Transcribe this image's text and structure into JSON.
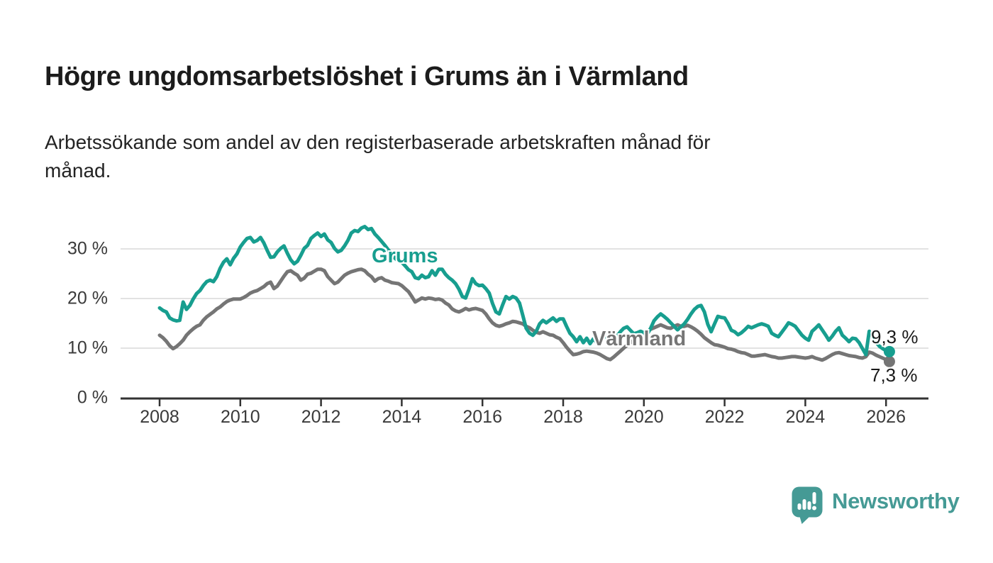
{
  "header": {
    "title": "Högre ungdomsarbetslöshet i Grums än i Värmland",
    "subtitle": "Arbetssökande som andel av den registerbaserade arbetskraften månad för\nmånad."
  },
  "chart_data": {
    "type": "line",
    "title": "Högre ungdomsarbetslöshet i Grums än i Värmland",
    "subtitle": "Arbetssökande som andel av den registerbaserade arbetskraften månad för månad.",
    "x_unit": "month",
    "x_start": "2008-01",
    "x_end": "2026-02",
    "xlim": [
      2007.05,
      2027.05
    ],
    "ylim": [
      0,
      36
    ],
    "grid": "horizontal",
    "legend": "inline-labels",
    "x_axis_ticks": [
      2008,
      2010,
      2012,
      2014,
      2016,
      2018,
      2020,
      2022,
      2024,
      2026
    ],
    "y_axis_ticks": [
      {
        "value": 0,
        "label": "0 %"
      },
      {
        "value": 10,
        "label": "10 %"
      },
      {
        "value": 20,
        "label": "20 %"
      },
      {
        "value": 30,
        "label": "30 %"
      }
    ],
    "colors": {
      "grid": "#d9d9d9",
      "axis": "#333333"
    },
    "series": [
      {
        "name": "Grums",
        "color": "#179e8f",
        "end_label": "9,3 %",
        "end_value": 9.3,
        "values": [
          18.1,
          17.6,
          17.3,
          16.1,
          15.7,
          15.5,
          15.6,
          19.3,
          17.8,
          18.6,
          19.9,
          21.0,
          21.6,
          22.6,
          23.4,
          23.7,
          23.4,
          24.4,
          26.1,
          27.3,
          28.0,
          26.8,
          28.1,
          29.0,
          30.4,
          31.3,
          32.1,
          32.3,
          31.4,
          31.7,
          32.3,
          31.2,
          29.7,
          28.3,
          28.4,
          29.4,
          30.1,
          30.6,
          29.1,
          27.8,
          27.0,
          27.5,
          28.7,
          30.1,
          30.7,
          32.1,
          32.7,
          33.2,
          32.5,
          33.0,
          31.8,
          31.3,
          30.1,
          29.4,
          29.7,
          30.6,
          31.7,
          33.2,
          33.7,
          33.5,
          34.2,
          34.5,
          33.9,
          34.1,
          33.0,
          32.3,
          31.5,
          30.7,
          29.8,
          29.0,
          28.1,
          27.5,
          27.3,
          26.6,
          25.8,
          25.4,
          24.2,
          24.0,
          24.7,
          24.2,
          24.4,
          25.6,
          24.7,
          25.9,
          25.9,
          24.9,
          24.2,
          23.7,
          23.0,
          21.9,
          20.4,
          20.1,
          21.9,
          24.0,
          23.0,
          22.6,
          22.7,
          22.0,
          21.1,
          19.0,
          17.3,
          16.9,
          18.7,
          20.4,
          19.9,
          20.4,
          20.1,
          19.1,
          16.6,
          14.0,
          13.0,
          12.6,
          13.4,
          14.9,
          15.6,
          15.1,
          15.6,
          16.1,
          15.4,
          15.9,
          15.9,
          14.4,
          13.0,
          12.3,
          11.3,
          12.3,
          11.1,
          12.0,
          10.9,
          11.9,
          11.1,
          11.6,
          12.1,
          12.6,
          12.2,
          11.7,
          12.4,
          13.3,
          14.0,
          14.3,
          13.6,
          12.9,
          13.1,
          13.4,
          13.1,
          12.8,
          14.0,
          15.5,
          16.3,
          16.9,
          16.4,
          15.8,
          15.1,
          14.4,
          13.7,
          14.3,
          14.9,
          15.8,
          16.9,
          17.8,
          18.4,
          18.6,
          17.3,
          14.8,
          13.3,
          14.9,
          16.4,
          16.2,
          16.1,
          15.0,
          13.6,
          13.3,
          12.7,
          13.1,
          13.7,
          14.4,
          14.1,
          14.4,
          14.7,
          14.9,
          14.7,
          14.4,
          13.0,
          12.6,
          12.3,
          13.2,
          14.1,
          15.1,
          14.8,
          14.4,
          13.5,
          12.6,
          12.0,
          11.6,
          13.4,
          14.0,
          14.7,
          13.7,
          12.7,
          11.6,
          12.4,
          13.4,
          14.1,
          12.6,
          12.0,
          11.3,
          12.0,
          11.9,
          11.1,
          9.9,
          8.7,
          13.4,
          12.3,
          11.2,
          10.4,
          9.9,
          9.5,
          9.3
        ]
      },
      {
        "name": "Värmland",
        "color": "#757575",
        "end_label": "7,3 %",
        "end_value": 7.3,
        "values": [
          12.6,
          12.1,
          11.4,
          10.5,
          9.9,
          10.3,
          10.9,
          11.6,
          12.6,
          13.3,
          13.9,
          14.4,
          14.7,
          15.6,
          16.3,
          16.8,
          17.3,
          17.9,
          18.3,
          18.9,
          19.4,
          19.7,
          19.9,
          19.9,
          19.9,
          20.2,
          20.6,
          21.1,
          21.4,
          21.6,
          22.0,
          22.4,
          23.0,
          23.3,
          22.0,
          22.5,
          23.5,
          24.5,
          25.4,
          25.6,
          25.1,
          24.7,
          23.7,
          24.1,
          24.9,
          25.1,
          25.5,
          25.9,
          25.9,
          25.6,
          24.4,
          23.7,
          23.0,
          23.3,
          24.0,
          24.7,
          25.1,
          25.4,
          25.6,
          25.8,
          25.9,
          25.6,
          24.9,
          24.4,
          23.5,
          24.0,
          24.2,
          23.7,
          23.5,
          23.2,
          23.1,
          23.0,
          22.6,
          22.0,
          21.4,
          20.4,
          19.3,
          19.7,
          20.1,
          19.9,
          20.1,
          20.0,
          19.8,
          19.9,
          19.7,
          19.1,
          18.7,
          17.9,
          17.5,
          17.3,
          17.6,
          18.0,
          17.7,
          17.9,
          18.0,
          17.8,
          17.6,
          16.9,
          15.9,
          15.1,
          14.6,
          14.4,
          14.6,
          14.9,
          15.1,
          15.4,
          15.3,
          15.1,
          14.9,
          14.4,
          14.1,
          13.6,
          13.2,
          13.0,
          13.3,
          13.0,
          12.7,
          12.6,
          12.2,
          11.9,
          11.1,
          10.2,
          9.4,
          8.7,
          8.8,
          9.0,
          9.3,
          9.4,
          9.3,
          9.2,
          9.0,
          8.7,
          8.3,
          7.9,
          7.7,
          8.2,
          8.8,
          9.4,
          10.0,
          10.6,
          11.1,
          11.7,
          12.2,
          12.7,
          13.0,
          13.3,
          13.8,
          14.1,
          14.4,
          14.7,
          14.4,
          14.1,
          14.0,
          14.4,
          14.7,
          14.4,
          14.4,
          14.6,
          14.3,
          13.9,
          13.4,
          12.8,
          12.1,
          11.6,
          11.1,
          10.7,
          10.6,
          10.4,
          10.2,
          9.9,
          9.8,
          9.6,
          9.3,
          9.1,
          9.0,
          8.7,
          8.4,
          8.4,
          8.5,
          8.6,
          8.7,
          8.5,
          8.3,
          8.2,
          8.0,
          8.0,
          8.1,
          8.2,
          8.3,
          8.3,
          8.2,
          8.1,
          8.0,
          8.1,
          8.3,
          8.0,
          7.8,
          7.6,
          7.9,
          8.3,
          8.7,
          9.0,
          9.1,
          8.9,
          8.7,
          8.5,
          8.4,
          8.3,
          8.1,
          8.0,
          8.3,
          9.2,
          9.0,
          8.6,
          8.3,
          8.0,
          7.7,
          7.3
        ]
      }
    ]
  },
  "footer": {
    "brand": "Newsworthy",
    "brand_color": "#459a95"
  }
}
